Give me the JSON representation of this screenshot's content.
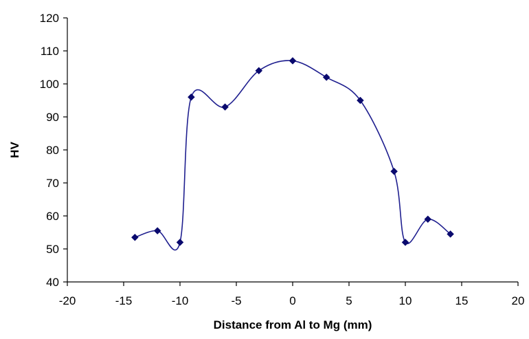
{
  "chart_data": {
    "type": "scatter",
    "title": "",
    "xlabel": "Distance from Al to Mg (mm)",
    "ylabel": "HV",
    "xlim": [
      -20,
      20
    ],
    "ylim": [
      40,
      120
    ],
    "xticks": [
      -20,
      -15,
      -10,
      -5,
      0,
      5,
      10,
      15,
      20
    ],
    "yticks": [
      40,
      50,
      60,
      70,
      80,
      90,
      100,
      110,
      120
    ],
    "grid": false,
    "legend": "none",
    "smoothed": true,
    "line_color": "#1f1f8f",
    "marker_color": "#0a0a6e",
    "marker": "diamond",
    "series": [
      {
        "x": [
          -14,
          -12,
          -10,
          -9,
          -6,
          -3,
          0,
          3,
          6,
          9,
          10,
          12,
          14
        ],
        "y": [
          53.5,
          55.5,
          52,
          96,
          93,
          104,
          107,
          102,
          95,
          73.5,
          52,
          59,
          54.5
        ]
      }
    ]
  }
}
